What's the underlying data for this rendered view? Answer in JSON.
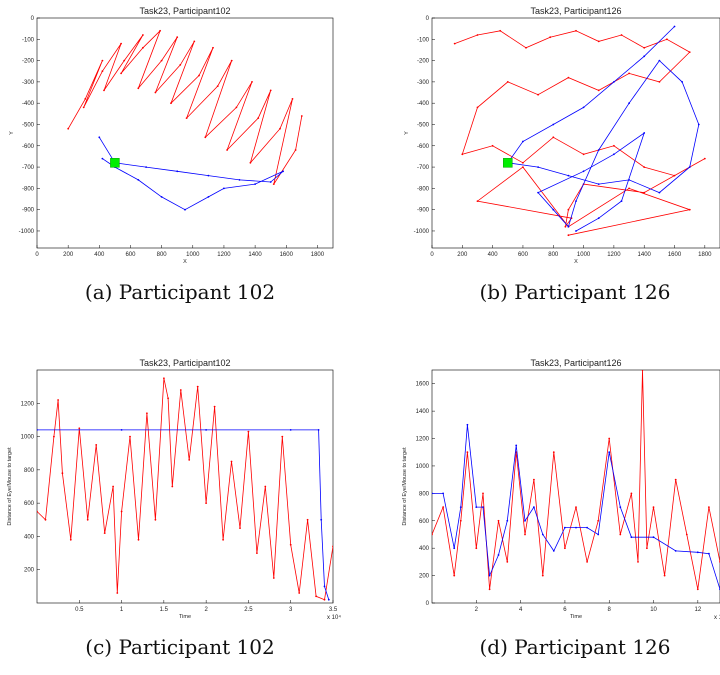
{
  "figure": {
    "captions": [
      "(a) Participant 102",
      "(b) Participant 126",
      "(c) Participant 102",
      "(d) Participant 126"
    ]
  },
  "colors": {
    "eye": "#ff0000",
    "mouse": "#0000ff",
    "target": "#00ee00"
  },
  "chart_data": [
    {
      "type": "line",
      "title": "Task23, Participant102",
      "xlabel": "X",
      "ylabel": "Y",
      "xlim": [
        0,
        1900
      ],
      "ylim": [
        -1080,
        0
      ],
      "xticks": [
        "0",
        "200",
        "400",
        "600",
        "800",
        "1000",
        "1200",
        "1400",
        "1600",
        "1800"
      ],
      "yticks": [
        "0",
        "-100",
        "-200",
        "-300",
        "-400",
        "-500",
        "-600",
        "-700",
        "-800",
        "-900",
        "-1000"
      ],
      "target": {
        "x": 500,
        "y": -680
      },
      "series": [
        {
          "color": "#ff0000",
          "x": [
            200,
            310,
            420,
            300,
            420,
            540,
            430,
            560,
            680,
            540,
            680,
            790,
            650,
            800,
            900,
            760,
            920,
            1010,
            860,
            1040,
            1130,
            960,
            1160,
            1250,
            1080,
            1280,
            1380,
            1220,
            1420,
            1500,
            1370,
            1560,
            1640,
            1520,
            1660,
            1700
          ],
          "y": [
            -520,
            -380,
            -200,
            -420,
            -250,
            -120,
            -340,
            -200,
            -80,
            -260,
            -140,
            -60,
            -330,
            -200,
            -90,
            -350,
            -220,
            -110,
            -400,
            -270,
            -140,
            -470,
            -320,
            -200,
            -560,
            -420,
            -300,
            -620,
            -470,
            -340,
            -680,
            -520,
            -380,
            -780,
            -620,
            -460
          ]
        },
        {
          "color": "#0000ff",
          "x": [
            400,
            500,
            700,
            900,
            1100,
            1300,
            1500,
            1580,
            1400,
            1200,
            1100,
            950,
            800,
            650,
            500,
            420
          ],
          "y": [
            -560,
            -680,
            -700,
            -720,
            -740,
            -760,
            -770,
            -720,
            -780,
            -800,
            -840,
            -900,
            -840,
            -760,
            -700,
            -660
          ]
        }
      ]
    },
    {
      "type": "line",
      "title": "Task23, Participant126",
      "xlabel": "X",
      "ylabel": "Y",
      "xlim": [
        0,
        1900
      ],
      "ylim": [
        -1080,
        0
      ],
      "xticks": [
        "0",
        "200",
        "400",
        "600",
        "800",
        "1000",
        "1200",
        "1400",
        "1600",
        "1800"
      ],
      "yticks": [
        "0",
        "-100",
        "-200",
        "-300",
        "-400",
        "-500",
        "-600",
        "-700",
        "-800",
        "-900",
        "-1000"
      ],
      "target": {
        "x": 500,
        "y": -680
      },
      "series": [
        {
          "color": "#ff0000",
          "x": [
            150,
            300,
            450,
            620,
            780,
            950,
            1100,
            1250,
            1400,
            1550,
            1700,
            1500,
            1300,
            1100,
            900,
            700,
            500,
            300,
            200,
            400,
            600,
            800,
            1000,
            1200,
            1400,
            1600,
            1800,
            1400,
            1000,
            900,
            880,
            920,
            300,
            600,
            900,
            1300,
            1700,
            900
          ],
          "y": [
            -120,
            -80,
            -60,
            -140,
            -90,
            -60,
            -110,
            -80,
            -140,
            -100,
            -160,
            -300,
            -260,
            -340,
            -280,
            -360,
            -300,
            -420,
            -640,
            -600,
            -680,
            -560,
            -640,
            -600,
            -700,
            -740,
            -660,
            -820,
            -780,
            -900,
            -980,
            -940,
            -860,
            -700,
            -980,
            -800,
            -900,
            -1020
          ]
        },
        {
          "color": "#0000ff",
          "x": [
            1600,
            1400,
            1200,
            1000,
            800,
            600,
            500,
            700,
            900,
            1100,
            1300,
            1500,
            1700,
            1760,
            1650,
            1500,
            1300,
            1100,
            950,
            900,
            800,
            700,
            1000,
            1200,
            1400,
            1250,
            1100,
            950
          ],
          "y": [
            -40,
            -180,
            -300,
            -420,
            -500,
            -580,
            -680,
            -700,
            -740,
            -780,
            -760,
            -820,
            -700,
            -500,
            -300,
            -200,
            -400,
            -620,
            -860,
            -980,
            -900,
            -820,
            -720,
            -640,
            -540,
            -860,
            -940,
            -1000
          ]
        }
      ]
    },
    {
      "type": "line",
      "title": "Task23, Participant102",
      "xlabel": "Time",
      "ylabel": "Distance of Eye/Mouse to target",
      "xlim": [
        0,
        3.5
      ],
      "ylim": [
        0,
        1400
      ],
      "x_exponent": "x 10⁴",
      "xticks": [
        "0.5",
        "1",
        "1.5",
        "2",
        "2.5",
        "3",
        "3.5"
      ],
      "yticks": [
        "200",
        "400",
        "600",
        "800",
        "1000",
        "1200"
      ],
      "series": [
        {
          "color": "#ff0000",
          "x": [
            0,
            0.1,
            0.2,
            0.25,
            0.3,
            0.4,
            0.5,
            0.6,
            0.7,
            0.8,
            0.9,
            0.95,
            1.0,
            1.1,
            1.2,
            1.3,
            1.4,
            1.5,
            1.55,
            1.6,
            1.7,
            1.8,
            1.9,
            2.0,
            2.1,
            2.2,
            2.3,
            2.4,
            2.5,
            2.6,
            2.7,
            2.8,
            2.9,
            3.0,
            3.1,
            3.2,
            3.3,
            3.4,
            3.5
          ],
          "y": [
            550,
            500,
            1000,
            1220,
            780,
            380,
            1050,
            500,
            950,
            420,
            700,
            60,
            550,
            1000,
            380,
            1140,
            500,
            1350,
            1230,
            700,
            1280,
            860,
            1300,
            600,
            1180,
            380,
            850,
            450,
            1030,
            300,
            700,
            150,
            1000,
            350,
            60,
            500,
            40,
            20,
            340
          ]
        },
        {
          "color": "#0000ff",
          "x": [
            0,
            1,
            2,
            3,
            3.33,
            3.36,
            3.4,
            3.45
          ],
          "y": [
            1040,
            1040,
            1040,
            1040,
            1040,
            500,
            100,
            20
          ]
        }
      ]
    },
    {
      "type": "line",
      "title": "Task23, Participant126",
      "xlabel": "Time",
      "ylabel": "Distance of Eye/Mouse to target",
      "xlim": [
        0,
        13
      ],
      "ylim": [
        0,
        1700
      ],
      "x_exponent": "x 1",
      "xticks": [
        "2",
        "4",
        "6",
        "8",
        "10",
        "12"
      ],
      "yticks": [
        "0",
        "200",
        "400",
        "600",
        "800",
        "1000",
        "1200",
        "1400",
        "1600"
      ],
      "series": [
        {
          "color": "#ff0000",
          "x": [
            0,
            0.5,
            1,
            1.3,
            1.6,
            2,
            2.3,
            2.6,
            3,
            3.4,
            3.8,
            4.2,
            4.6,
            5,
            5.5,
            6,
            6.5,
            7,
            7.5,
            8,
            8.5,
            9,
            9.3,
            9.5,
            9.7,
            10,
            10.5,
            11,
            11.5,
            12,
            12.5,
            13
          ],
          "y": [
            500,
            700,
            200,
            600,
            1100,
            400,
            800,
            100,
            600,
            300,
            1100,
            500,
            900,
            200,
            1100,
            400,
            700,
            300,
            600,
            1200,
            500,
            800,
            300,
            1700,
            400,
            700,
            200,
            900,
            500,
            100,
            700,
            300
          ]
        },
        {
          "color": "#0000ff",
          "x": [
            0,
            0.5,
            1,
            1.3,
            1.6,
            2,
            2.3,
            2.6,
            3,
            3.4,
            3.8,
            4.2,
            4.6,
            5,
            5.5,
            6,
            6.5,
            7,
            7.5,
            8,
            8.5,
            9,
            10,
            11,
            12,
            12.5,
            13
          ],
          "y": [
            800,
            800,
            400,
            700,
            1300,
            700,
            700,
            200,
            350,
            600,
            1150,
            600,
            700,
            500,
            380,
            550,
            550,
            550,
            500,
            1100,
            700,
            480,
            480,
            380,
            370,
            360,
            100
          ]
        }
      ]
    }
  ]
}
